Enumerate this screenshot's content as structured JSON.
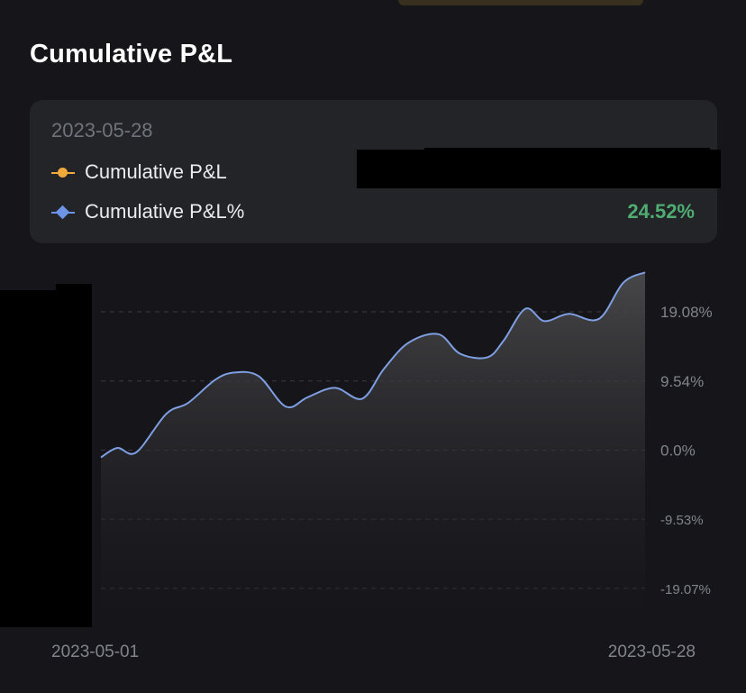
{
  "header": {
    "title": "Cumulative P&L"
  },
  "tooltip": {
    "date": "2023-05-28",
    "rows": [
      {
        "label": "Cumulative P&L",
        "value": "",
        "marker": "circle",
        "color": "#f0a93b"
      },
      {
        "label": "Cumulative P&L%",
        "value": "24.52%",
        "marker": "diamond",
        "color": "#6e94e8"
      }
    ]
  },
  "colors": {
    "background": "#16161a",
    "line": "#7f9fe3",
    "positive": "#4fad72",
    "area_top": "#4a4a4d"
  },
  "chart_data": {
    "type": "area",
    "x_start_label": "2023-05-01",
    "x_end_label": "2023-05-28",
    "y_ticks": [
      {
        "value": 19.08,
        "label": "19.08%"
      },
      {
        "value": 9.54,
        "label": "9.54%"
      },
      {
        "value": 0.0,
        "label": "0.0%"
      },
      {
        "value": -9.53,
        "label": "-9.53%"
      },
      {
        "value": -19.07,
        "label": "-19.07%"
      }
    ],
    "ylim": [
      -24.3,
      24.8
    ],
    "grid": true,
    "series": [
      {
        "name": "Cumulative P&L%",
        "values": [
          [
            0.0,
            -1.0
          ],
          [
            0.03,
            0.3
          ],
          [
            0.065,
            -0.3
          ],
          [
            0.12,
            5.0
          ],
          [
            0.16,
            6.5
          ],
          [
            0.21,
            9.7
          ],
          [
            0.245,
            10.7
          ],
          [
            0.29,
            10.2
          ],
          [
            0.34,
            6.0
          ],
          [
            0.38,
            7.3
          ],
          [
            0.43,
            8.6
          ],
          [
            0.48,
            7.1
          ],
          [
            0.52,
            11.2
          ],
          [
            0.565,
            14.8
          ],
          [
            0.62,
            16.0
          ],
          [
            0.66,
            13.3
          ],
          [
            0.71,
            12.8
          ],
          [
            0.74,
            15.1
          ],
          [
            0.78,
            19.5
          ],
          [
            0.815,
            17.8
          ],
          [
            0.86,
            18.8
          ],
          [
            0.915,
            18.1
          ],
          [
            0.96,
            23.1
          ],
          [
            1.0,
            24.52
          ]
        ]
      }
    ]
  }
}
